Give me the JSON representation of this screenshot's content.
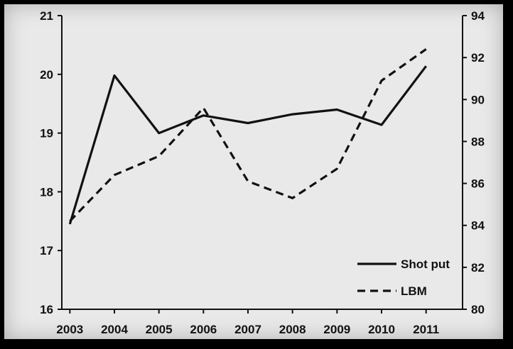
{
  "chart_data": {
    "type": "line",
    "title": "",
    "xlabel": "",
    "ylabel": "",
    "y2label": "",
    "categories": [
      "2003",
      "2004",
      "2005",
      "2006",
      "2007",
      "2008",
      "2009",
      "2010",
      "2011"
    ],
    "ylim": [
      16,
      21
    ],
    "y2lim": [
      80,
      94
    ],
    "yticks": [
      "16",
      "17",
      "18",
      "19",
      "20",
      "21"
    ],
    "y2ticks": [
      "80",
      "82",
      "84",
      "86",
      "88",
      "90",
      "92",
      "94"
    ],
    "grid": false,
    "legend_position": "bottom-right",
    "series": [
      {
        "name": "Shot put",
        "axis": "left",
        "style": "solid",
        "color": "#111111",
        "values": [
          17.45,
          19.98,
          19.0,
          19.3,
          19.17,
          19.32,
          19.4,
          19.14,
          20.14
        ]
      },
      {
        "name": "LBM",
        "axis": "right",
        "style": "dashed",
        "color": "#111111",
        "values": [
          84.2,
          86.4,
          87.3,
          89.6,
          86.1,
          85.3,
          86.7,
          90.9,
          92.4
        ]
      }
    ]
  }
}
